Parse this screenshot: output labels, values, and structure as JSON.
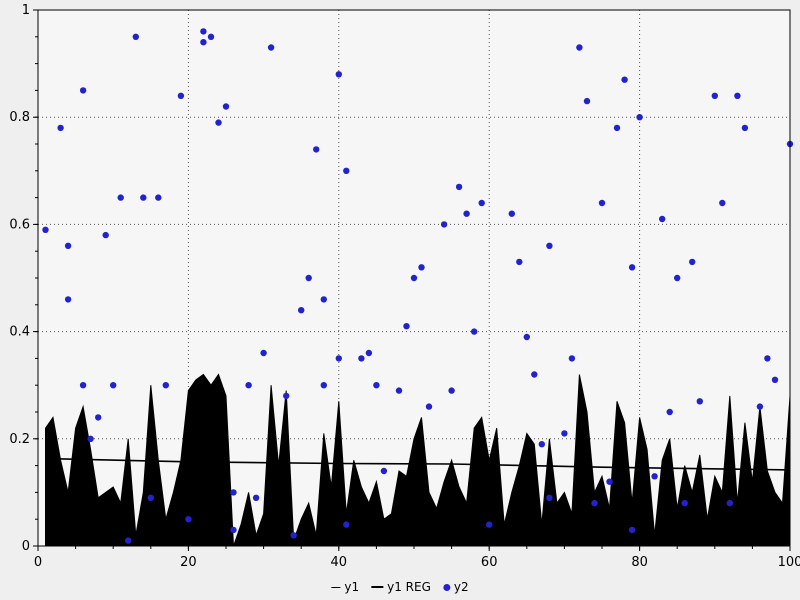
{
  "page": {
    "background": "#efefef"
  },
  "chart_data": {
    "type": "area",
    "title": "",
    "xlabel": "",
    "ylabel": "",
    "xlim": [
      0,
      100
    ],
    "ylim": [
      0,
      1
    ],
    "x_ticks": [
      0,
      20,
      40,
      60,
      80,
      100
    ],
    "y_ticks": [
      0,
      0.2,
      0.4,
      0.6,
      0.8,
      1
    ],
    "x_tick_labels": [
      "0",
      "20",
      "40",
      "60",
      "80",
      "100"
    ],
    "y_tick_labels": [
      "0",
      "0.2",
      "0.4",
      "0.6",
      "0.8",
      "1"
    ],
    "grid": "dotted",
    "legend_position": "bottom-center",
    "colors": {
      "y1_fill": "#000000",
      "reg_line": "#000000",
      "y2_dot": "#2323cc",
      "plot_bg": "#f6f6f6",
      "grid": "#555555",
      "axis": "#000000"
    },
    "series": [
      {
        "name": "y1",
        "type": "area",
        "x_start": 1,
        "x_step": 1,
        "values": [
          0.22,
          0.24,
          0.16,
          0.1,
          0.22,
          0.26,
          0.18,
          0.09,
          0.1,
          0.11,
          0.08,
          0.2,
          0.02,
          0.1,
          0.3,
          0.16,
          0.05,
          0.1,
          0.16,
          0.29,
          0.31,
          0.32,
          0.3,
          0.32,
          0.28,
          0.0,
          0.04,
          0.1,
          0.02,
          0.06,
          0.3,
          0.15,
          0.29,
          0.01,
          0.05,
          0.08,
          0.02,
          0.21,
          0.11,
          0.27,
          0.06,
          0.16,
          0.11,
          0.08,
          0.12,
          0.05,
          0.06,
          0.14,
          0.13,
          0.2,
          0.24,
          0.1,
          0.07,
          0.12,
          0.16,
          0.11,
          0.08,
          0.22,
          0.24,
          0.16,
          0.22,
          0.04,
          0.1,
          0.15,
          0.21,
          0.19,
          0.04,
          0.2,
          0.08,
          0.1,
          0.06,
          0.32,
          0.25,
          0.1,
          0.13,
          0.07,
          0.27,
          0.23,
          0.08,
          0.24,
          0.18,
          0.02,
          0.16,
          0.2,
          0.07,
          0.15,
          0.1,
          0.17,
          0.05,
          0.13,
          0.1,
          0.28,
          0.08,
          0.23,
          0.12,
          0.26,
          0.14,
          0.1,
          0.08,
          0.28
        ]
      },
      {
        "name": "y1 REG",
        "type": "line",
        "points": [
          [
            1,
            0.163
          ],
          [
            20,
            0.157
          ],
          [
            40,
            0.154
          ],
          [
            55,
            0.153
          ],
          [
            65,
            0.15
          ],
          [
            75,
            0.147
          ],
          [
            85,
            0.145
          ],
          [
            100,
            0.142
          ]
        ]
      },
      {
        "name": "y2",
        "type": "scatter",
        "points": [
          [
            1,
            0.59
          ],
          [
            3,
            0.78
          ],
          [
            4,
            0.56
          ],
          [
            4,
            0.46
          ],
          [
            6,
            0.85
          ],
          [
            6,
            0.3
          ],
          [
            7,
            0.2
          ],
          [
            8,
            0.24
          ],
          [
            9,
            0.58
          ],
          [
            10,
            0.3
          ],
          [
            11,
            0.65
          ],
          [
            12,
            0.01
          ],
          [
            13,
            0.95
          ],
          [
            14,
            0.65
          ],
          [
            15,
            0.09
          ],
          [
            16,
            0.65
          ],
          [
            17,
            0.3
          ],
          [
            19,
            0.84
          ],
          [
            20,
            0.05
          ],
          [
            22,
            0.96
          ],
          [
            22,
            0.94
          ],
          [
            23,
            0.95
          ],
          [
            24,
            0.79
          ],
          [
            25,
            0.82
          ],
          [
            26,
            0.03
          ],
          [
            26,
            0.1
          ],
          [
            28,
            0.3
          ],
          [
            29,
            0.09
          ],
          [
            30,
            0.36
          ],
          [
            31,
            0.93
          ],
          [
            33,
            0.28
          ],
          [
            34,
            0.02
          ],
          [
            35,
            0.44
          ],
          [
            36,
            0.5
          ],
          [
            37,
            0.74
          ],
          [
            38,
            0.3
          ],
          [
            38,
            0.46
          ],
          [
            40,
            0.88
          ],
          [
            40,
            0.35
          ],
          [
            41,
            0.7
          ],
          [
            41,
            0.04
          ],
          [
            43,
            0.35
          ],
          [
            44,
            0.36
          ],
          [
            45,
            0.3
          ],
          [
            46,
            0.14
          ],
          [
            48,
            0.29
          ],
          [
            49,
            0.41
          ],
          [
            50,
            0.5
          ],
          [
            51,
            0.52
          ],
          [
            52,
            0.26
          ],
          [
            54,
            0.6
          ],
          [
            55,
            0.29
          ],
          [
            56,
            0.67
          ],
          [
            57,
            0.62
          ],
          [
            58,
            0.4
          ],
          [
            59,
            0.64
          ],
          [
            60,
            0.04
          ],
          [
            63,
            0.62
          ],
          [
            64,
            0.53
          ],
          [
            65,
            0.39
          ],
          [
            66,
            0.32
          ],
          [
            67,
            0.19
          ],
          [
            68,
            0.56
          ],
          [
            68,
            0.09
          ],
          [
            70,
            0.21
          ],
          [
            71,
            0.35
          ],
          [
            72,
            0.93
          ],
          [
            73,
            0.83
          ],
          [
            74,
            0.08
          ],
          [
            75,
            0.64
          ],
          [
            76,
            0.12
          ],
          [
            77,
            0.78
          ],
          [
            78,
            0.87
          ],
          [
            79,
            0.52
          ],
          [
            79,
            0.03
          ],
          [
            80,
            0.8
          ],
          [
            82,
            0.13
          ],
          [
            83,
            0.61
          ],
          [
            84,
            0.25
          ],
          [
            85,
            0.5
          ],
          [
            86,
            0.08
          ],
          [
            87,
            0.53
          ],
          [
            88,
            0.27
          ],
          [
            90,
            0.84
          ],
          [
            91,
            0.64
          ],
          [
            92,
            0.08
          ],
          [
            93,
            0.84
          ],
          [
            94,
            0.78
          ],
          [
            96,
            0.26
          ],
          [
            97,
            0.35
          ],
          [
            98,
            0.31
          ],
          [
            100,
            0.75
          ]
        ]
      }
    ]
  }
}
